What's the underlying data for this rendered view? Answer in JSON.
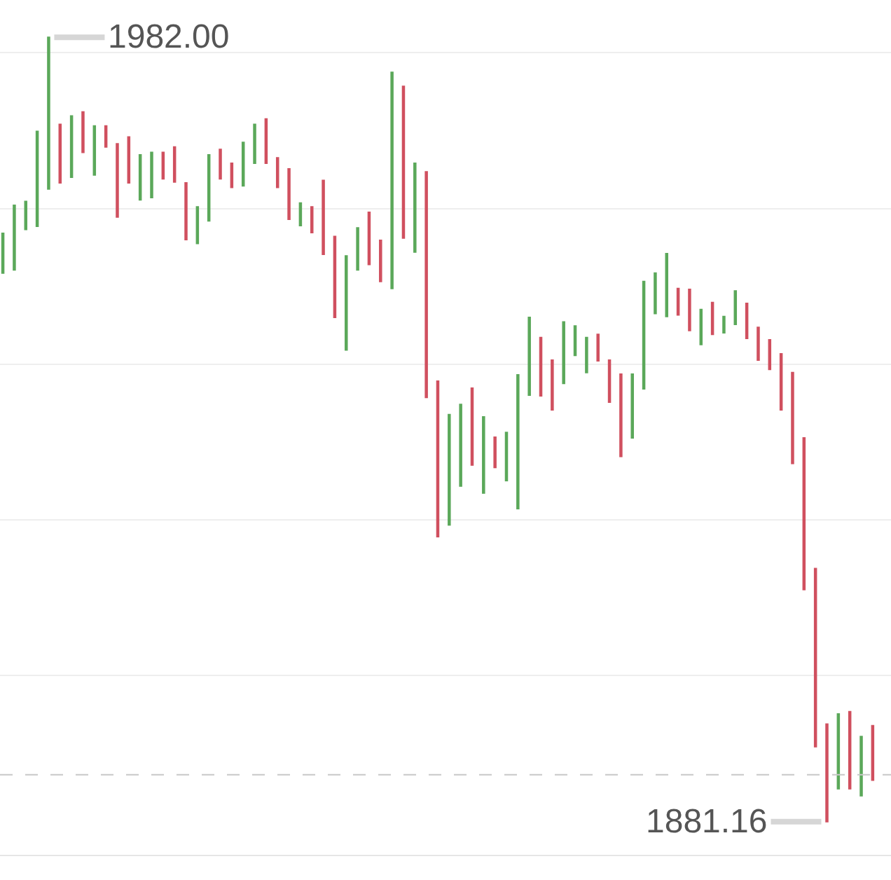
{
  "chart_data": {
    "type": "candlestick",
    "categories": [
      null,
      null,
      null,
      null,
      null,
      null,
      null,
      null,
      null,
      null,
      null,
      null,
      null,
      null,
      null,
      null,
      null,
      null,
      null,
      null,
      null,
      null,
      null,
      null,
      null,
      null,
      null,
      null,
      null,
      null,
      null,
      null,
      null,
      null,
      null,
      null,
      null,
      null,
      null,
      null,
      null,
      null,
      null,
      null,
      null,
      null,
      null,
      null,
      null,
      null,
      null,
      null,
      null,
      null,
      null,
      null,
      null,
      null,
      null,
      null,
      null,
      null,
      null,
      null,
      null,
      null,
      null,
      null,
      null,
      null,
      null,
      null,
      null,
      null,
      null,
      null,
      null
    ],
    "ohlc": [
      [
        1951.7,
        1956.8,
        1951.7,
        1956.8
      ],
      [
        1952.1,
        1960.4,
        1952.1,
        1960.4
      ],
      [
        1957.3,
        1960.9,
        1957.3,
        1960.9
      ],
      [
        1957.7,
        1969.9,
        1957.7,
        1969.9
      ],
      [
        1962.5,
        1982.0,
        1962.5,
        1982.0
      ],
      [
        1970.8,
        1970.8,
        1963.3,
        1963.3
      ],
      [
        1964.0,
        1971.9,
        1964.0,
        1971.9
      ],
      [
        1972.4,
        1972.4,
        1967.2,
        1967.2
      ],
      [
        1964.3,
        1970.6,
        1964.3,
        1970.6
      ],
      [
        1970.6,
        1970.6,
        1967.9,
        1967.9
      ],
      [
        1968.3,
        1968.3,
        1958.9,
        1958.9
      ],
      [
        1969.2,
        1969.2,
        1963.3,
        1963.3
      ],
      [
        1961.1,
        1966.9,
        1961.1,
        1966.9
      ],
      [
        1961.4,
        1967.2,
        1961.4,
        1967.2
      ],
      [
        1967.2,
        1967.2,
        1963.8,
        1963.8
      ],
      [
        1967.9,
        1967.9,
        1963.4,
        1963.4
      ],
      [
        1963.3,
        1963.3,
        1956.0,
        1956.0
      ],
      [
        1955.5,
        1960.2,
        1955.5,
        1960.2
      ],
      [
        1958.4,
        1966.9,
        1958.4,
        1966.9
      ],
      [
        1967.6,
        1967.6,
        1963.8,
        1963.8
      ],
      [
        1965.8,
        1965.8,
        1962.7,
        1962.7
      ],
      [
        1962.9,
        1968.5,
        1962.9,
        1968.5
      ],
      [
        1965.8,
        1970.8,
        1965.8,
        1970.8
      ],
      [
        1971.5,
        1971.5,
        1965.8,
        1965.8
      ],
      [
        1966.5,
        1966.5,
        1962.7,
        1962.7
      ],
      [
        1965.1,
        1965.1,
        1958.6,
        1958.6
      ],
      [
        1957.8,
        1960.7,
        1957.8,
        1960.7
      ],
      [
        1960.2,
        1960.2,
        1956.9,
        1956.9
      ],
      [
        1963.6,
        1963.6,
        1954.1,
        1954.1
      ],
      [
        1956.4,
        1956.4,
        1946.0,
        1946.0
      ],
      [
        1941.8,
        1953.9,
        1941.8,
        1953.9
      ],
      [
        1952.1,
        1957.5,
        1952.1,
        1957.5
      ],
      [
        1959.5,
        1959.5,
        1952.8,
        1952.8
      ],
      [
        1955.9,
        1955.9,
        1950.6,
        1950.6
      ],
      [
        1949.7,
        1977.5,
        1949.7,
        1977.5
      ],
      [
        1975.7,
        1975.7,
        1956.2,
        1956.2
      ],
      [
        1954.4,
        1965.8,
        1954.4,
        1965.8
      ],
      [
        1964.7,
        1964.7,
        1935.7,
        1935.7
      ],
      [
        1937.8,
        1937.8,
        1917.8,
        1917.8
      ],
      [
        1919.3,
        1933.5,
        1919.3,
        1933.5
      ],
      [
        1924.3,
        1934.8,
        1924.3,
        1934.8
      ],
      [
        1936.9,
        1936.9,
        1927.0,
        1927.0
      ],
      [
        1923.4,
        1933.2,
        1923.4,
        1933.2
      ],
      [
        1930.6,
        1930.6,
        1926.7,
        1926.7
      ],
      [
        1925.0,
        1931.2,
        1925.0,
        1931.2
      ],
      [
        1921.4,
        1938.6,
        1921.4,
        1938.6
      ],
      [
        1936.0,
        1946.0,
        1936.0,
        1946.0
      ],
      [
        1943.4,
        1943.4,
        1935.9,
        1935.9
      ],
      [
        1940.5,
        1940.5,
        1934.1,
        1934.1
      ],
      [
        1937.5,
        1945.4,
        1937.5,
        1945.4
      ],
      [
        1941.1,
        1944.9,
        1941.1,
        1944.9
      ],
      [
        1938.9,
        1943.4,
        1938.9,
        1943.4
      ],
      [
        1943.8,
        1943.8,
        1940.4,
        1940.4
      ],
      [
        1940.5,
        1940.5,
        1935.1,
        1935.1
      ],
      [
        1938.7,
        1938.7,
        1928.1,
        1928.1
      ],
      [
        1930.5,
        1938.7,
        1930.5,
        1938.7
      ],
      [
        1936.8,
        1950.6,
        1936.8,
        1950.6
      ],
      [
        1946.5,
        1951.7,
        1946.5,
        1951.7
      ],
      [
        1946.1,
        1954.2,
        1946.1,
        1954.2
      ],
      [
        1949.7,
        1949.7,
        1946.3,
        1946.3
      ],
      [
        1949.6,
        1949.6,
        1944.3,
        1944.3
      ],
      [
        1942.5,
        1947.0,
        1942.5,
        1947.0
      ],
      [
        1947.9,
        1947.9,
        1943.8,
        1943.8
      ],
      [
        1944.0,
        1946.1,
        1944.0,
        1946.1
      ],
      [
        1945.1,
        1949.4,
        1945.1,
        1949.4
      ],
      [
        1947.8,
        1947.8,
        1943.3,
        1943.3
      ],
      [
        1944.7,
        1944.7,
        1940.5,
        1940.5
      ],
      [
        1943.1,
        1943.1,
        1939.3,
        1939.3
      ],
      [
        1941.3,
        1941.3,
        1934.1,
        1934.1
      ],
      [
        1938.9,
        1938.9,
        1927.2,
        1927.2
      ],
      [
        1930.5,
        1930.5,
        1911.0,
        1911.0
      ],
      [
        1913.7,
        1913.7,
        1890.8,
        1890.8
      ],
      [
        1893.7,
        1893.7,
        1881.16,
        1881.16
      ],
      [
        1885.4,
        1895.0,
        1885.4,
        1895.0
      ],
      [
        1895.3,
        1895.3,
        1885.4,
        1885.4
      ],
      [
        1884.5,
        1892.1,
        1884.5,
        1892.1
      ],
      [
        1893.5,
        1893.5,
        1886.5,
        1886.5
      ]
    ],
    "colors": [
      "#5ba85a",
      "#5ba85a",
      "#5ba85a",
      "#5ba85a",
      "#5ba85a",
      "#d0505f",
      "#5ba85a",
      "#d0505f",
      "#5ba85a",
      "#d0505f",
      "#d0505f",
      "#d0505f",
      "#5ba85a",
      "#5ba85a",
      "#d0505f",
      "#d0505f",
      "#d0505f",
      "#5ba85a",
      "#5ba85a",
      "#d0505f",
      "#d0505f",
      "#5ba85a",
      "#5ba85a",
      "#d0505f",
      "#d0505f",
      "#d0505f",
      "#5ba85a",
      "#d0505f",
      "#d0505f",
      "#d0505f",
      "#5ba85a",
      "#5ba85a",
      "#d0505f",
      "#d0505f",
      "#5ba85a",
      "#d0505f",
      "#5ba85a",
      "#d0505f",
      "#d0505f",
      "#5ba85a",
      "#5ba85a",
      "#d0505f",
      "#5ba85a",
      "#d0505f",
      "#5ba85a",
      "#5ba85a",
      "#5ba85a",
      "#d0505f",
      "#d0505f",
      "#5ba85a",
      "#5ba85a",
      "#5ba85a",
      "#d0505f",
      "#d0505f",
      "#d0505f",
      "#5ba85a",
      "#5ba85a",
      "#5ba85a",
      "#5ba85a",
      "#d0505f",
      "#d0505f",
      "#5ba85a",
      "#d0505f",
      "#5ba85a",
      "#5ba85a",
      "#d0505f",
      "#d0505f",
      "#d0505f",
      "#d0505f",
      "#d0505f",
      "#d0505f",
      "#d0505f",
      "#d0505f",
      "#5ba85a",
      "#d0505f",
      "#5ba85a",
      "#d0505f"
    ],
    "ylim": [
      1876.9,
      1986.8
    ],
    "yticks": [
      {
        "value": 1900,
        "label": null
      },
      {
        "value": 1920,
        "label": null
      },
      {
        "value": 1940,
        "label": null
      },
      {
        "value": 1960,
        "label": null
      },
      {
        "value": 1980,
        "label": null
      }
    ],
    "grid": "y",
    "ref_lines": [
      {
        "axis": "y",
        "value": 1887.2,
        "line_style": "dashed",
        "color": "#c8c8c8"
      }
    ],
    "annotations": [
      "1982.00",
      "1881.16"
    ]
  }
}
